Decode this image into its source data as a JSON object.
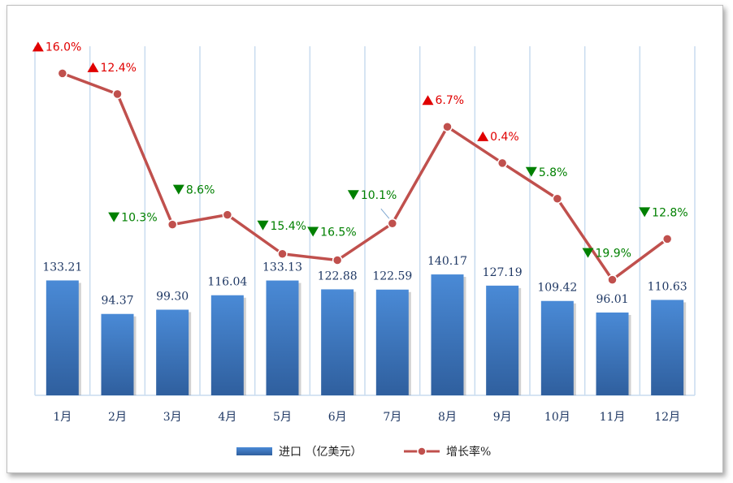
{
  "chart_data": {
    "type": "bar",
    "categories": [
      "1月",
      "2月",
      "3月",
      "4月",
      "5月",
      "6月",
      "7月",
      "8月",
      "9月",
      "10月",
      "11月",
      "12月"
    ],
    "series": [
      {
        "name": "进口 （亿美元）",
        "kind": "bar",
        "color": "#3a78c3",
        "values": [
          133.21,
          94.37,
          99.3,
          116.04,
          133.13,
          122.88,
          122.59,
          140.17,
          127.19,
          109.42,
          96.01,
          110.63
        ],
        "labels": [
          "133.21",
          "94.37",
          "99.30",
          "116.04",
          "133.13",
          "122.88",
          "122.59",
          "140.17",
          "127.19",
          "109.42",
          "96.01",
          "110.63"
        ]
      },
      {
        "name": "增长率%",
        "kind": "line",
        "color": "#c0504d",
        "values": [
          16.0,
          12.4,
          -10.3,
          -8.6,
          -15.4,
          -16.5,
          -10.1,
          6.7,
          0.4,
          -5.8,
          -19.9,
          -12.8
        ],
        "labels": [
          "16.0%",
          "12.4%",
          "10.3%",
          "8.6%",
          "15.4%",
          "16.5%",
          "10.1%",
          "6.7%",
          "0.4%",
          "5.8%",
          "19.9%",
          "12.8%"
        ],
        "up_color": "#e00000",
        "down_color": "#008000"
      }
    ],
    "bar_ylim": [
      0,
      400
    ],
    "line_ylim": [
      -40,
      20
    ],
    "grid": "vertical",
    "legend": "bottom"
  }
}
